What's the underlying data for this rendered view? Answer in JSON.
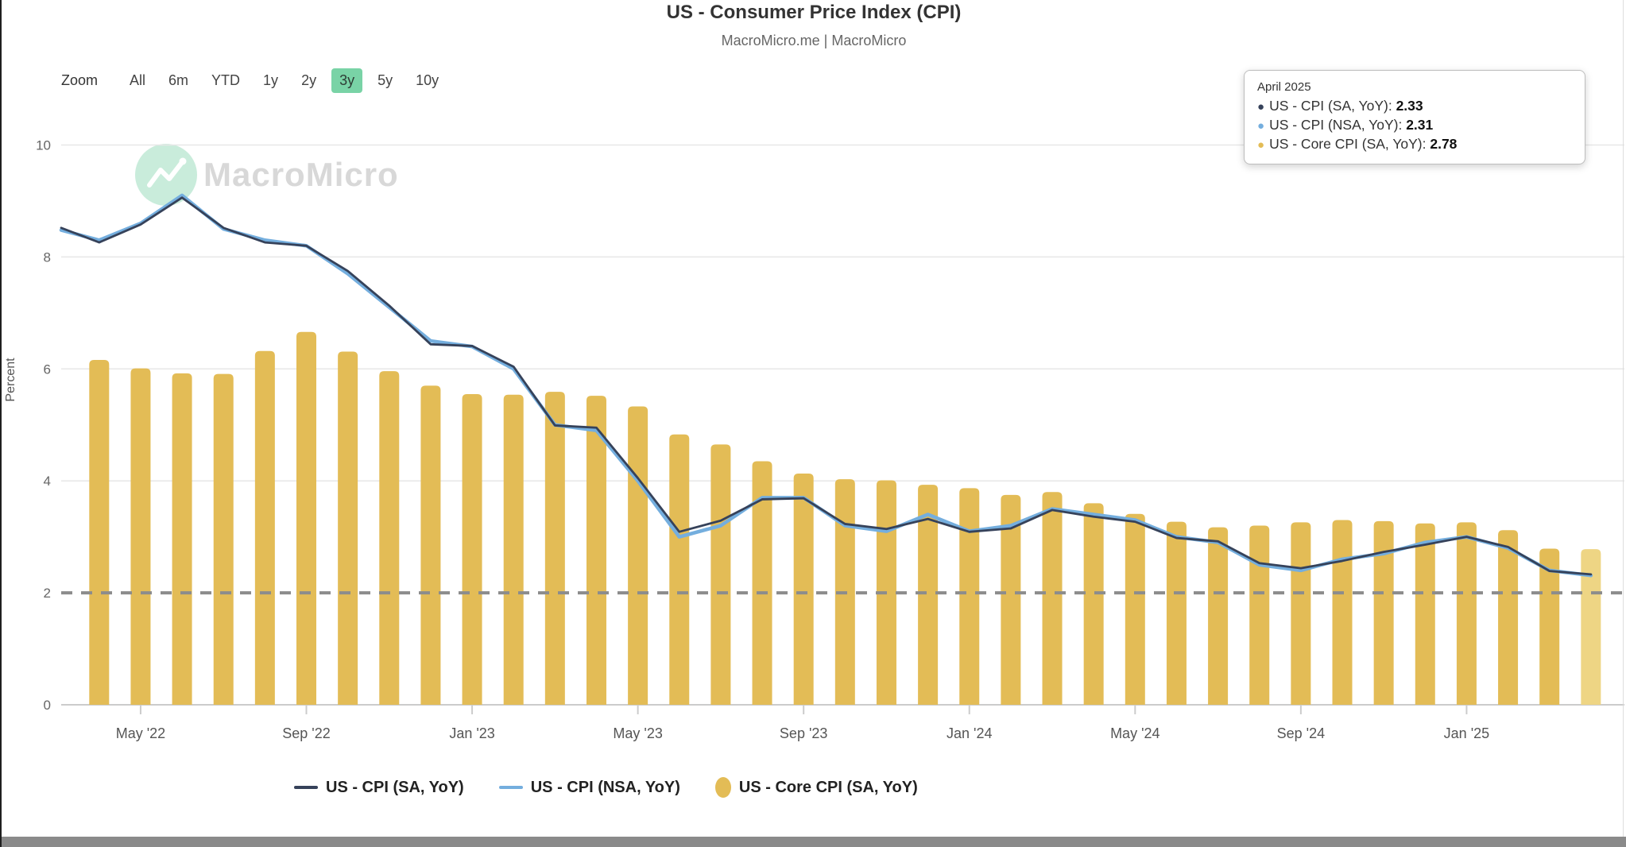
{
  "header": {
    "title": "US - Consumer Price Index (CPI)",
    "subtitle": "MacroMicro.me | MacroMicro"
  },
  "toolbar": {
    "zoom_label": "Zoom",
    "buttons": [
      {
        "label": "All",
        "active": false
      },
      {
        "label": "6m",
        "active": false
      },
      {
        "label": "YTD",
        "active": false
      },
      {
        "label": "1y",
        "active": false
      },
      {
        "label": "2y",
        "active": false
      },
      {
        "label": "3y",
        "active": true
      },
      {
        "label": "5y",
        "active": false
      },
      {
        "label": "10y",
        "active": false
      }
    ],
    "active_bg": "#79d3a6"
  },
  "watermark": {
    "text": "MacroMicro"
  },
  "tooltip": {
    "date": "April 2025",
    "rows": [
      {
        "label": "US - CPI (SA, YoY)",
        "value": "2.33",
        "color": "#36425a"
      },
      {
        "label": "US - CPI (NSA, YoY)",
        "value": "2.31",
        "color": "#74aede"
      },
      {
        "label": "US - Core CPI (SA, YoY)",
        "value": "2.78",
        "color": "#e3bc56"
      }
    ]
  },
  "legend": [
    {
      "label": "US - CPI (SA, YoY)",
      "swatch": "line",
      "color": "#36425a"
    },
    {
      "label": "US - CPI (NSA, YoY)",
      "swatch": "line",
      "color": "#74aede"
    },
    {
      "label": "US - Core CPI (SA, YoY)",
      "swatch": "oval",
      "color": "#e3bc56"
    }
  ],
  "chart_data": {
    "type": "bar+line",
    "title": "US - Consumer Price Index (CPI)",
    "subtitle": "MacroMicro.me | MacroMicro",
    "ylabel": "Percent",
    "ylim": [
      0,
      10
    ],
    "yticks": [
      0,
      2,
      4,
      6,
      8,
      10
    ],
    "grid": "horizontal",
    "reference_line": {
      "value": 2,
      "style": "dashed",
      "color": "#8c8c8c"
    },
    "legend_position": "bottom",
    "x": [
      "Apr 2022",
      "May 2022",
      "Jun 2022",
      "Jul 2022",
      "Aug 2022",
      "Sep 2022",
      "Oct 2022",
      "Nov 2022",
      "Dec 2022",
      "Jan 2023",
      "Feb 2023",
      "Mar 2023",
      "Apr 2023",
      "May 2023",
      "Jun 2023",
      "Jul 2023",
      "Aug 2023",
      "Sep 2023",
      "Oct 2023",
      "Nov 2023",
      "Dec 2023",
      "Jan 2024",
      "Feb 2024",
      "Mar 2024",
      "Apr 2024",
      "May 2024",
      "Jun 2024",
      "Jul 2024",
      "Aug 2024",
      "Sep 2024",
      "Oct 2024",
      "Nov 2024",
      "Dec 2024",
      "Jan 2025",
      "Feb 2025",
      "Mar 2025",
      "Apr 2025"
    ],
    "xtick_labels": [
      "May '22",
      "Sep '22",
      "Jan '23",
      "May '23",
      "Sep '23",
      "Jan '24",
      "May '24",
      "Sep '24",
      "Jan '25"
    ],
    "xtick_month_index": [
      1,
      5,
      9,
      13,
      17,
      21,
      25,
      29,
      33
    ],
    "series": [
      {
        "name": "US - CPI (SA, YoY)",
        "type": "line",
        "color": "#36425a",
        "left_edge_clip_value": 8.52,
        "values": [
          8.26,
          8.58,
          9.06,
          8.52,
          8.26,
          8.2,
          7.75,
          7.13,
          6.44,
          6.41,
          6.04,
          4.99,
          4.95,
          4.05,
          3.09,
          3.29,
          3.67,
          3.69,
          3.23,
          3.14,
          3.32,
          3.09,
          3.15,
          3.48,
          3.36,
          3.27,
          2.98,
          2.92,
          2.53,
          2.44,
          2.57,
          2.73,
          2.86,
          3.0,
          2.82,
          2.39,
          2.33
        ]
      },
      {
        "name": "US - CPI (NSA, YoY)",
        "type": "line",
        "color": "#74aede",
        "left_edge_clip_value": 8.48,
        "values": [
          8.3,
          8.6,
          9.1,
          8.5,
          8.3,
          8.2,
          7.7,
          7.1,
          6.5,
          6.4,
          6.0,
          5.0,
          4.9,
          4.0,
          3.0,
          3.2,
          3.7,
          3.7,
          3.2,
          3.1,
          3.4,
          3.1,
          3.2,
          3.5,
          3.4,
          3.3,
          3.0,
          2.9,
          2.5,
          2.4,
          2.6,
          2.7,
          2.9,
          3.0,
          2.8,
          2.4,
          2.31
        ]
      },
      {
        "name": "US - Core CPI (SA, YoY)",
        "type": "bar",
        "color": "#e3bc56",
        "highlight_last_color": "#eed584",
        "values": [
          6.16,
          6.01,
          5.92,
          5.91,
          6.32,
          6.66,
          6.31,
          5.96,
          5.7,
          5.55,
          5.54,
          5.59,
          5.52,
          5.33,
          4.83,
          4.65,
          4.35,
          4.13,
          4.03,
          4.01,
          3.93,
          3.87,
          3.75,
          3.8,
          3.6,
          3.41,
          3.27,
          3.17,
          3.2,
          3.26,
          3.3,
          3.28,
          3.24,
          3.26,
          3.12,
          2.79,
          2.78
        ]
      }
    ]
  },
  "colors": {
    "gridline": "#e7e7e7",
    "axis_line": "#cccccc",
    "tick_text": "#666666",
    "dashed_reference": "#8c8c8c"
  }
}
